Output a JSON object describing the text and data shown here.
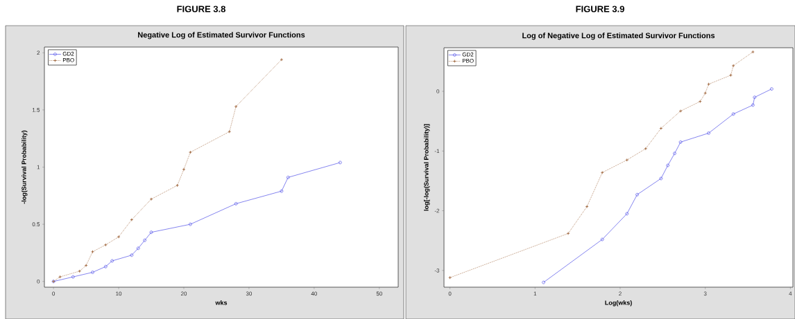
{
  "chart_data": [
    {
      "type": "line",
      "title": "FIGURE 3.8",
      "subtitle": "Negative Log of Estimated Survivor Functions",
      "xlabel": "wks",
      "ylabel": "-log(Survival Probability)",
      "xlim": [
        -1.4,
        52.9
      ],
      "ylim": [
        -0.05,
        2.05
      ],
      "xticks": [
        0,
        10,
        20,
        30,
        40,
        50
      ],
      "yticks": [
        0,
        0.5,
        1,
        1.5,
        2
      ],
      "legend": "top left",
      "series": [
        {
          "name": "GD2",
          "color": "#5050e8",
          "marker": "circle",
          "line_style": "solid",
          "x": [
            0,
            3,
            6,
            8,
            9,
            12,
            13,
            14,
            15,
            21,
            28,
            35,
            36,
            44
          ],
          "values": [
            0,
            0.04,
            0.08,
            0.13,
            0.18,
            0.23,
            0.29,
            0.36,
            0.43,
            0.5,
            0.68,
            0.79,
            0.91,
            1.04
          ]
        },
        {
          "name": "PBO",
          "color": "#8b4513",
          "marker": "cross",
          "line_style": "dotted",
          "x": [
            0,
            1,
            4,
            5,
            6,
            8,
            10,
            12,
            15,
            19,
            20,
            21,
            27,
            28,
            35
          ],
          "values": [
            0,
            0.04,
            0.09,
            0.14,
            0.26,
            0.32,
            0.39,
            0.54,
            0.72,
            0.84,
            0.98,
            1.13,
            1.31,
            1.53,
            1.94
          ]
        }
      ]
    },
    {
      "type": "line",
      "title": "FIGURE 3.9",
      "subtitle": "Log of Negative Log of Estimated Survivor Functions",
      "xlabel": "Log(wks)",
      "ylabel": "log[-log(Survival Probability)]",
      "xlim": [
        -0.07,
        4.03
      ],
      "ylim": [
        -3.28,
        0.73
      ],
      "xticks": [
        0,
        1,
        2,
        3,
        4
      ],
      "yticks": [
        -3,
        -2,
        -1,
        0
      ],
      "legend": "top left",
      "series": [
        {
          "name": "GD2",
          "color": "#5050e8",
          "marker": "circle",
          "line_style": "solid",
          "x": [
            1.1,
            1.79,
            2.08,
            2.2,
            2.48,
            2.56,
            2.64,
            2.71,
            3.04,
            3.33,
            3.56,
            3.58,
            3.78
          ],
          "values": [
            -3.2,
            -2.48,
            -2.05,
            -1.73,
            -1.46,
            -1.24,
            -1.04,
            -0.85,
            -0.7,
            -0.38,
            -0.23,
            -0.1,
            0.04
          ]
        },
        {
          "name": "PBO",
          "color": "#8b4513",
          "marker": "cross",
          "line_style": "dotted",
          "x": [
            0,
            1.39,
            1.61,
            1.79,
            2.08,
            2.3,
            2.48,
            2.71,
            2.94,
            3.0,
            3.04,
            3.3,
            3.33,
            3.56
          ],
          "values": [
            -3.12,
            -2.38,
            -1.93,
            -1.36,
            -1.15,
            -0.96,
            -0.62,
            -0.33,
            -0.17,
            -0.03,
            0.12,
            0.27,
            0.43,
            0.66
          ]
        }
      ]
    }
  ]
}
